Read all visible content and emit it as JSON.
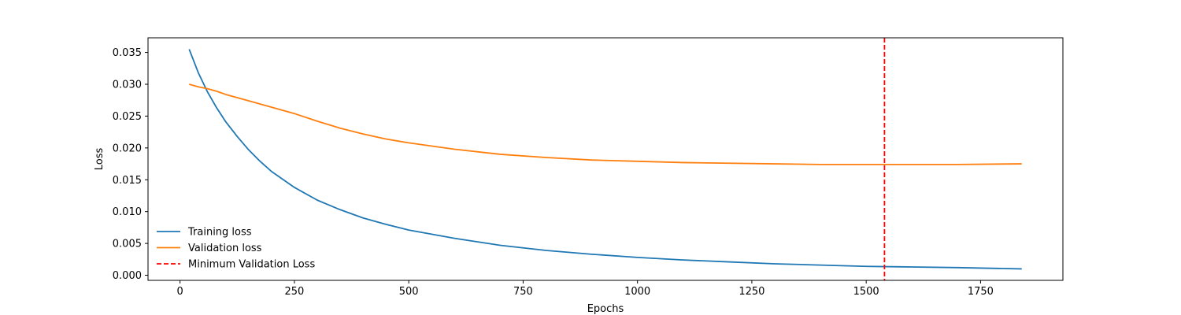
{
  "chart_data": {
    "type": "line",
    "title": "",
    "xlabel": "Epochs",
    "ylabel": "Loss",
    "xlim": [
      -70,
      1930
    ],
    "ylim": [
      -0.0008,
      0.0373
    ],
    "xticks": [
      0,
      250,
      500,
      750,
      1000,
      1250,
      1500,
      1750
    ],
    "xtick_labels": [
      "0",
      "250",
      "500",
      "750",
      "1000",
      "1250",
      "1500",
      "1750"
    ],
    "yticks": [
      0.0,
      0.005,
      0.01,
      0.015,
      0.02,
      0.025,
      0.03,
      0.035
    ],
    "ytick_labels": [
      "0.000",
      "0.005",
      "0.010",
      "0.015",
      "0.020",
      "0.025",
      "0.030",
      "0.035"
    ],
    "grid": false,
    "legend_position": "lower-left",
    "series": [
      {
        "name": "Training loss",
        "color": "#1f77b4",
        "style": "solid",
        "x": [
          20,
          40,
          60,
          80,
          100,
          125,
          150,
          175,
          200,
          250,
          300,
          350,
          400,
          450,
          500,
          600,
          700,
          800,
          900,
          1000,
          1100,
          1200,
          1300,
          1400,
          1500,
          1600,
          1700,
          1840
        ],
        "y": [
          0.0355,
          0.0318,
          0.0288,
          0.0263,
          0.0241,
          0.0218,
          0.0197,
          0.0179,
          0.0163,
          0.0138,
          0.0118,
          0.0103,
          0.009,
          0.008,
          0.0071,
          0.0058,
          0.0047,
          0.0039,
          0.0033,
          0.0028,
          0.0024,
          0.0021,
          0.0018,
          0.0016,
          0.0014,
          0.0013,
          0.0012,
          0.001
        ]
      },
      {
        "name": "Validation loss",
        "color": "#ff7f0e",
        "style": "solid",
        "x": [
          20,
          40,
          60,
          80,
          100,
          150,
          200,
          250,
          300,
          350,
          400,
          450,
          500,
          600,
          700,
          800,
          900,
          1000,
          1100,
          1200,
          1300,
          1400,
          1500,
          1540,
          1600,
          1700,
          1840
        ],
        "y": [
          0.03,
          0.0296,
          0.0293,
          0.0289,
          0.0284,
          0.0274,
          0.0264,
          0.0254,
          0.0242,
          0.0231,
          0.0222,
          0.0214,
          0.0208,
          0.0198,
          0.019,
          0.0185,
          0.0181,
          0.0179,
          0.0177,
          0.0176,
          0.0175,
          0.0174,
          0.0174,
          0.0174,
          0.0174,
          0.0174,
          0.0175
        ]
      },
      {
        "name": "Minimum Validation Loss",
        "color": "#ff0000",
        "style": "dashed",
        "type": "vline",
        "x_value": 1540
      }
    ]
  }
}
